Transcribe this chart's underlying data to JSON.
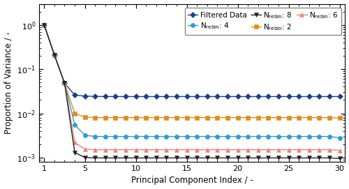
{
  "title": "",
  "xlabel": "Principal Component Index / -",
  "ylabel": "Proportion of Variance / -",
  "ylim": [
    0.0008,
    3.0
  ],
  "xlim": [
    0.5,
    30.5
  ],
  "series": [
    {
      "label": "Filtered Data",
      "color": "#1a3f8f",
      "marker": "D",
      "markersize": 4.5,
      "linewidth": 1.0,
      "y_vals": [
        1.0,
        0.21,
        0.048,
        0.026,
        0.0245,
        0.0242,
        0.024,
        0.024,
        0.024,
        0.024,
        0.024,
        0.024,
        0.024,
        0.024,
        0.024,
        0.024,
        0.024,
        0.024,
        0.024,
        0.024,
        0.024,
        0.024,
        0.024,
        0.024,
        0.024,
        0.024,
        0.024,
        0.024,
        0.024,
        0.024
      ]
    },
    {
      "label": "N$_{\\mathrm{rebin}}$: 2",
      "color": "#e08c1a",
      "marker": "s",
      "markersize": 4.5,
      "linewidth": 1.0,
      "y_vals": [
        1.0,
        0.21,
        0.048,
        0.01,
        0.0082,
        0.008,
        0.008,
        0.008,
        0.008,
        0.008,
        0.008,
        0.008,
        0.008,
        0.008,
        0.008,
        0.008,
        0.008,
        0.008,
        0.008,
        0.008,
        0.008,
        0.008,
        0.008,
        0.008,
        0.008,
        0.008,
        0.008,
        0.008,
        0.008,
        0.0078
      ]
    },
    {
      "label": "N$_{\\mathrm{rebin}}$: 4",
      "color": "#2e9dd4",
      "marker": "o",
      "markersize": 4.5,
      "linewidth": 1.0,
      "y_vals": [
        1.0,
        0.21,
        0.048,
        0.0055,
        0.0032,
        0.003,
        0.003,
        0.003,
        0.003,
        0.003,
        0.003,
        0.003,
        0.003,
        0.003,
        0.003,
        0.003,
        0.003,
        0.003,
        0.003,
        0.003,
        0.003,
        0.003,
        0.003,
        0.003,
        0.003,
        0.003,
        0.003,
        0.003,
        0.003,
        0.0028
      ]
    },
    {
      "label": "N$_{\\mathrm{rebin}}$: 6",
      "color": "#e8837a",
      "marker": "^",
      "markersize": 4.5,
      "linewidth": 1.0,
      "y_vals": [
        1.0,
        0.21,
        0.048,
        0.0022,
        0.00155,
        0.0015,
        0.0015,
        0.0015,
        0.0015,
        0.0015,
        0.0015,
        0.0015,
        0.0015,
        0.0015,
        0.0015,
        0.0015,
        0.0015,
        0.0015,
        0.0015,
        0.0015,
        0.0015,
        0.0015,
        0.0015,
        0.0015,
        0.0015,
        0.0015,
        0.0015,
        0.0015,
        0.0015,
        0.00145
      ]
    },
    {
      "label": "N$_{\\mathrm{rebin}}$: 8",
      "color": "#222222",
      "marker": "v",
      "markersize": 4.5,
      "linewidth": 1.0,
      "y_vals": [
        1.0,
        0.21,
        0.048,
        0.0013,
        0.001,
        0.00098,
        0.00098,
        0.00098,
        0.00098,
        0.00098,
        0.00098,
        0.00098,
        0.00098,
        0.00098,
        0.00098,
        0.00098,
        0.00098,
        0.00098,
        0.00098,
        0.00098,
        0.00098,
        0.00098,
        0.00098,
        0.00098,
        0.00098,
        0.00098,
        0.00098,
        0.00098,
        0.00098,
        0.00095
      ]
    }
  ],
  "legend_order": [
    0,
    2,
    4,
    1,
    3
  ],
  "background_color": "#ffffff",
  "figsize": [
    5.0,
    2.71
  ],
  "dpi": 100
}
